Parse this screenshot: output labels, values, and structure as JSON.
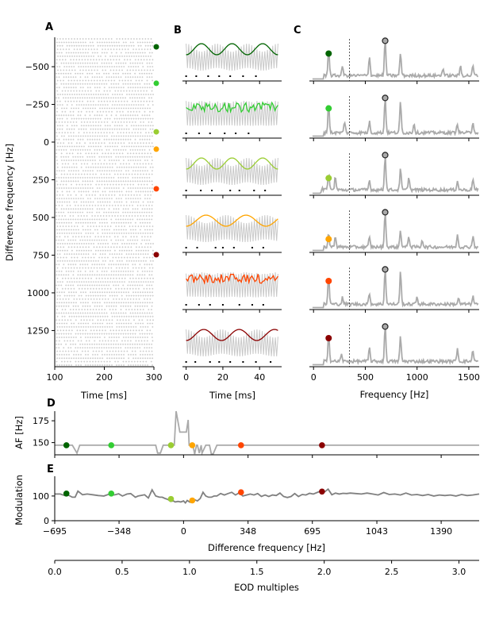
{
  "figure": {
    "panel_labels": [
      "A",
      "B",
      "C",
      "D",
      "E"
    ]
  },
  "chart_data": [
    {
      "id": "A",
      "type": "scatter",
      "title": "",
      "xlabel": "Time [ms]",
      "ylabel": "Difference frequency [Hz]",
      "xlim": [
        100,
        300
      ],
      "ylim": [
        -695,
        1490
      ],
      "y_inverted": true,
      "xticks": [
        100,
        200,
        300
      ],
      "yticks": [
        -500,
        -250,
        0,
        250,
        500,
        750,
        1000,
        1250
      ],
      "description": "Spike raster: light gray '+' markers for each difference frequency row",
      "marker_color": "#c8c8c8",
      "highlight_dfs": [
        -632,
        -390,
        -68,
        47,
        310,
        747
      ],
      "highlight_colors": [
        "#006400",
        "#32cd32",
        "#9acd32",
        "#ffa500",
        "#ff4500",
        "#8b0000"
      ]
    },
    {
      "id": "B",
      "type": "line",
      "xlabel": "Time [ms]",
      "xlim": [
        -2,
        52
      ],
      "xticks": [
        0,
        20,
        40
      ],
      "rows": [
        {
          "df": -632,
          "color": "#006400",
          "beat_cycles": 3.0,
          "envelope": "smooth",
          "spikes_ms": [
            0,
            5.5,
            12,
            18,
            24,
            31,
            38
          ]
        },
        {
          "df": -390,
          "color": "#32cd32",
          "beat_cycles": 0,
          "envelope": "noisy",
          "spikes_ms": [
            0,
            7,
            13,
            21,
            27,
            34
          ]
        },
        {
          "df": -68,
          "color": "#9acd32",
          "beat_cycles": 3.0,
          "envelope": "smooth",
          "spikes_ms": [
            0,
            8,
            14,
            24,
            29,
            37,
            43
          ]
        },
        {
          "df": 47,
          "color": "#ffa500",
          "beat_cycles": 2.3,
          "envelope": "smooth",
          "spikes_ms": [
            0,
            6,
            16,
            20,
            26,
            36,
            42
          ]
        },
        {
          "df": 310,
          "color": "#ff4500",
          "beat_cycles": 0,
          "envelope": "noisy",
          "spikes_ms": [
            0,
            7,
            13,
            20,
            29,
            36,
            42
          ]
        },
        {
          "df": 747,
          "color": "#8b0000",
          "beat_cycles": 2.6,
          "envelope": "smooth",
          "spikes_ms": [
            0,
            5,
            13,
            18,
            24,
            31,
            38,
            46
          ]
        }
      ]
    },
    {
      "id": "C",
      "type": "line",
      "xlabel": "Frequency [Hz]",
      "xlim": [
        -40,
        1600
      ],
      "xticks": [
        0,
        500,
        1000,
        1500
      ],
      "dashed_line_hz": 347,
      "eod_peak_hz": 692,
      "rows": [
        {
          "color": "#006400",
          "peak_hz": 146,
          "peak_height": 0.72,
          "extra_peaks": [
            [
              280,
              0.25
            ],
            [
              540,
              0.52
            ],
            [
              840,
              0.6
            ],
            [
              1250,
              0.2
            ],
            [
              1420,
              0.25
            ],
            [
              1540,
              0.25
            ]
          ]
        },
        {
          "color": "#32cd32",
          "peak_hz": 146,
          "peak_height": 0.78,
          "extra_peaks": [
            [
              300,
              0.3
            ],
            [
              540,
              0.3
            ],
            [
              840,
              0.82
            ],
            [
              970,
              0.25
            ],
            [
              1390,
              0.25
            ],
            [
              1540,
              0.3
            ]
          ]
        },
        {
          "color": "#9acd32",
          "peak_hz": 146,
          "peak_height": 0.45,
          "extra_peaks": [
            [
              85,
              0.15
            ],
            [
              210,
              0.35
            ],
            [
              540,
              0.25
            ],
            [
              840,
              0.55
            ],
            [
              920,
              0.35
            ],
            [
              1390,
              0.25
            ],
            [
              1540,
              0.3
            ]
          ]
        },
        {
          "color": "#ffa500",
          "peak_hz": 146,
          "peak_height": 0.35,
          "extra_peaks": [
            [
              210,
              0.3
            ],
            [
              540,
              0.25
            ],
            [
              840,
              0.45
            ],
            [
              920,
              0.3
            ],
            [
              1050,
              0.2
            ],
            [
              1390,
              0.35
            ],
            [
              1540,
              0.3
            ]
          ]
        },
        {
          "color": "#ff4500",
          "peak_hz": 146,
          "peak_height": 0.75,
          "extra_peaks": [
            [
              280,
              0.18
            ],
            [
              540,
              0.3
            ],
            [
              840,
              0.85
            ],
            [
              1000,
              0.2
            ],
            [
              1400,
              0.15
            ],
            [
              1540,
              0.2
            ]
          ]
        },
        {
          "color": "#8b0000",
          "peak_hz": 146,
          "peak_height": 0.75,
          "extra_peaks": [
            [
              270,
              0.18
            ],
            [
              540,
              0.35
            ],
            [
              840,
              0.65
            ],
            [
              1390,
              0.35
            ],
            [
              1540,
              0.3
            ]
          ]
        }
      ]
    },
    {
      "id": "D",
      "type": "line",
      "xlabel": "",
      "ylabel": "AF [Hz]",
      "xlim": [
        -695,
        1595
      ],
      "ylim": [
        136,
        186
      ],
      "yticks": [
        150,
        175
      ],
      "line_color": "#aaaaaa",
      "x": [
        -695,
        -640,
        -600,
        -575,
        -560,
        -530,
        -150,
        -140,
        -125,
        -110,
        -50,
        -40,
        -20,
        0,
        15,
        25,
        30,
        50,
        60,
        70,
        75,
        85,
        95,
        100,
        120,
        140,
        150,
        160,
        180,
        200,
        1595
      ],
      "y": [
        147,
        147,
        147,
        138,
        147,
        147,
        147,
        138,
        138,
        147,
        147,
        186,
        162,
        162,
        162,
        176,
        147,
        147,
        137,
        147,
        147,
        138,
        147,
        138,
        147,
        147,
        137,
        137,
        147,
        147,
        147
      ],
      "markers": [
        {
          "df": -632,
          "value": 147,
          "color": "#006400"
        },
        {
          "df": -390,
          "value": 147,
          "color": "#32cd32"
        },
        {
          "df": -68,
          "value": 147,
          "color": "#9acd32"
        },
        {
          "df": 47,
          "value": 147,
          "color": "#ffa500"
        },
        {
          "df": 310,
          "value": 147,
          "color": "#ff4500"
        },
        {
          "df": 747,
          "value": 147,
          "color": "#8b0000"
        }
      ]
    },
    {
      "id": "E",
      "type": "line",
      "xlabel": "Difference frequency [Hz]",
      "ylabel": "Modulation",
      "xlim": [
        -695,
        1595
      ],
      "ylim": [
        0,
        180
      ],
      "yticks": [
        0,
        100
      ],
      "xticks": [
        -695,
        -348,
        0,
        348,
        695,
        1043,
        1390
      ],
      "xtick_labels": [
        "−695",
        "−348",
        "0",
        "348",
        "695",
        "1043",
        "1390"
      ],
      "line_color": "#808080",
      "x": [
        -695,
        -665,
        -640,
        -620,
        -600,
        -585,
        -570,
        -545,
        -520,
        -490,
        -460,
        -430,
        -400,
        -375,
        -350,
        -330,
        -305,
        -285,
        -260,
        -245,
        -225,
        -210,
        -190,
        -170,
        -150,
        -130,
        -115,
        -100,
        -85,
        -70,
        -55,
        -45,
        -30,
        -15,
        0,
        10,
        20,
        35,
        50,
        60,
        75,
        90,
        105,
        120,
        135,
        150,
        165,
        180,
        200,
        220,
        240,
        260,
        280,
        300,
        320,
        340,
        360,
        380,
        400,
        420,
        440,
        460,
        480,
        500,
        520,
        540,
        560,
        580,
        600,
        620,
        640,
        660,
        680,
        700,
        720,
        740,
        760,
        780,
        800,
        820,
        840,
        860,
        880,
        900,
        930,
        960,
        990,
        1020,
        1050,
        1080,
        1110,
        1140,
        1170,
        1200,
        1230,
        1260,
        1290,
        1320,
        1350,
        1380,
        1410,
        1440,
        1470,
        1500,
        1530,
        1560,
        1595
      ],
      "y": [
        108,
        108,
        102,
        103,
        95,
        95,
        120,
        105,
        108,
        105,
        102,
        100,
        108,
        104,
        109,
        100,
        108,
        110,
        95,
        100,
        103,
        105,
        92,
        125,
        100,
        95,
        95,
        90,
        86,
        78,
        80,
        76,
        78,
        76,
        80,
        72,
        82,
        75,
        80,
        85,
        80,
        90,
        115,
        100,
        95,
        95,
        100,
        100,
        110,
        104,
        110,
        115,
        104,
        113,
        100,
        104,
        108,
        104,
        110,
        98,
        104,
        98,
        104,
        102,
        112,
        98,
        94,
        98,
        110,
        98,
        106,
        104,
        111,
        108,
        114,
        120,
        116,
        128,
        105,
        112,
        108,
        111,
        110,
        112,
        110,
        108,
        112,
        108,
        104,
        114,
        106,
        108,
        104,
        112,
        104,
        106,
        102,
        106,
        100,
        104,
        102,
        104,
        100,
        106,
        102,
        104,
        108
      ],
      "markers": [
        {
          "df": -632,
          "value": 110,
          "color": "#006400"
        },
        {
          "df": -390,
          "value": 110,
          "color": "#32cd32"
        },
        {
          "df": -68,
          "value": 88,
          "color": "#9acd32"
        },
        {
          "df": 47,
          "value": 82,
          "color": "#ffa500"
        },
        {
          "df": 310,
          "value": 115,
          "color": "#ff4500"
        },
        {
          "df": 747,
          "value": 118,
          "color": "#8b0000"
        }
      ]
    },
    {
      "id": "EOD-axis",
      "type": "line",
      "xlabel": "EOD multiples",
      "xlim": [
        0,
        3.15
      ],
      "xticks": [
        0.0,
        0.5,
        1.0,
        1.5,
        2.0,
        2.5,
        3.0
      ],
      "xtick_labels": [
        "0.0",
        "0.5",
        "1.0",
        "1.5",
        "2.0",
        "2.5",
        "3.0"
      ]
    }
  ]
}
